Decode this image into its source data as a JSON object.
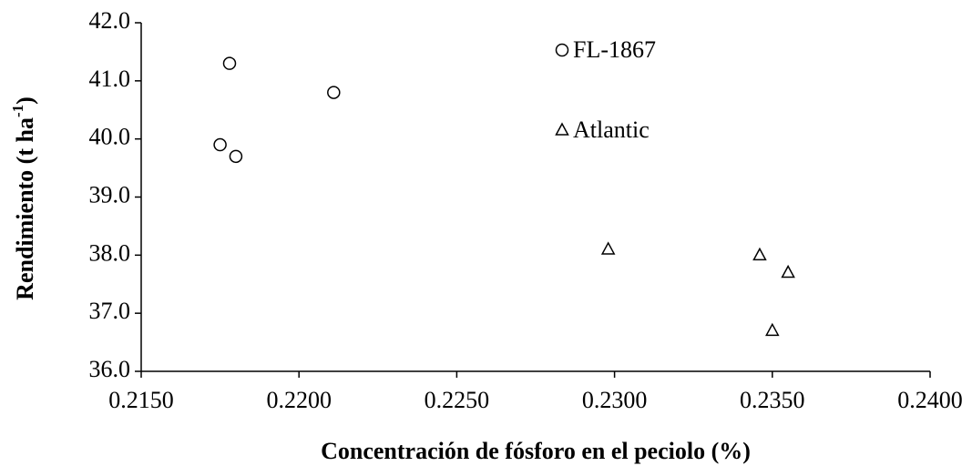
{
  "chart_data": {
    "type": "scatter",
    "x_label": "Concentración de fósforo en el peciolo (%)",
    "y_label": [
      "Rendimiento (t ha",
      "-1",
      ")"
    ],
    "xlim": [
      0.215,
      0.24
    ],
    "xticks": [
      {
        "value": 0.215,
        "label": "0.2150"
      },
      {
        "value": 0.22,
        "label": "0.2200"
      },
      {
        "value": 0.225,
        "label": "0.2250"
      },
      {
        "value": 0.23,
        "label": "0.2300"
      },
      {
        "value": 0.235,
        "label": "0.2350"
      },
      {
        "value": 0.24,
        "label": "0.2400"
      }
    ],
    "ylim": [
      36,
      42
    ],
    "yticks": [
      {
        "value": 36,
        "label": "36.0"
      },
      {
        "value": 37,
        "label": "37.0"
      },
      {
        "value": 38,
        "label": "38.0"
      },
      {
        "value": 39,
        "label": "39.0"
      },
      {
        "value": 40,
        "label": "40.0"
      },
      {
        "value": 41,
        "label": "41.0"
      },
      {
        "value": 42,
        "label": "42.0"
      }
    ],
    "grid": false,
    "legend": "top-right",
    "series": [
      {
        "name": "FL-1867",
        "color": "#000000",
        "marker": "circle",
        "x": [
          0.2175,
          0.2178,
          0.218,
          0.2211
        ],
        "values": [
          39.9,
          41.3,
          39.7,
          40.8
        ]
      },
      {
        "name": "Atlantic",
        "color": "#000000",
        "marker": "triangle",
        "x": [
          0.2298,
          0.2346,
          0.2355,
          0.235
        ],
        "values": [
          38.1,
          38.0,
          37.7,
          36.7
        ]
      }
    ]
  }
}
